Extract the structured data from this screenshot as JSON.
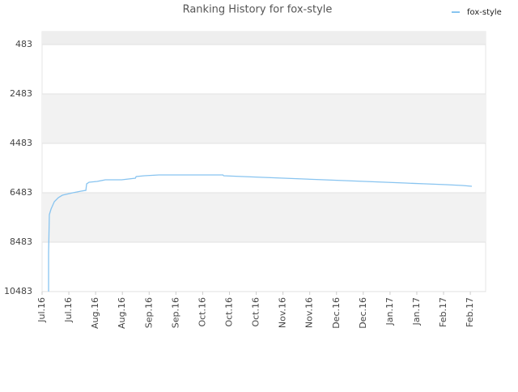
{
  "chart_data": {
    "type": "line",
    "title": "Ranking History for fox-style",
    "x": [
      3.4,
      3.4,
      3.8,
      4.7,
      6.4,
      8.5,
      10.6,
      16.1,
      20.4,
      22.9,
      23.3,
      24.6,
      28.8,
      33.1,
      41.6,
      48.8,
      49.2,
      53.5,
      61.1,
      94.6,
      95,
      105.2,
      115.8,
      126.4,
      137,
      147.6,
      158.2,
      168.8,
      179.5,
      190.1,
      200.7,
      211.3,
      219.8,
      224.8
    ],
    "series": [
      {
        "name": "fox-style",
        "color": "#88c4f0",
        "values": [
          10483,
          8909,
          7369,
          7139,
          6844,
          6680,
          6582,
          6483,
          6418,
          6385,
          6123,
          6057,
          6024,
          5959,
          5959,
          5893,
          5828,
          5795,
          5762,
          5762,
          5795,
          5828,
          5861,
          5893,
          5926,
          5959,
          5992,
          6024,
          6057,
          6090,
          6123,
          6155,
          6188,
          6221
        ]
      }
    ],
    "xlim": [
      0,
      232
    ],
    "xticks": [
      {
        "value": 0,
        "label": "Jul.16"
      },
      {
        "value": 14,
        "label": "Jul.16"
      },
      {
        "value": 28,
        "label": "Aug.16"
      },
      {
        "value": 42,
        "label": "Aug.16"
      },
      {
        "value": 56,
        "label": "Sep.16"
      },
      {
        "value": 70,
        "label": "Sep.16"
      },
      {
        "value": 84,
        "label": "Oct.16"
      },
      {
        "value": 98,
        "label": "Oct.16"
      },
      {
        "value": 112,
        "label": "Oct.16"
      },
      {
        "value": 126,
        "label": "Nov.16"
      },
      {
        "value": 140,
        "label": "Nov.16"
      },
      {
        "value": 154,
        "label": "Dec.16"
      },
      {
        "value": 168,
        "label": "Dec.16"
      },
      {
        "value": 182,
        "label": "Jan.17"
      },
      {
        "value": 196,
        "label": "Jan.17"
      },
      {
        "value": 210,
        "label": "Feb.17"
      },
      {
        "value": 224,
        "label": "Feb.17"
      }
    ],
    "ylim": [
      10483,
      -42
    ],
    "yticks": [
      483,
      2483,
      4483,
      6483,
      8483,
      10483
    ],
    "y_inverted": true,
    "grid": true,
    "legend": "top-right"
  }
}
